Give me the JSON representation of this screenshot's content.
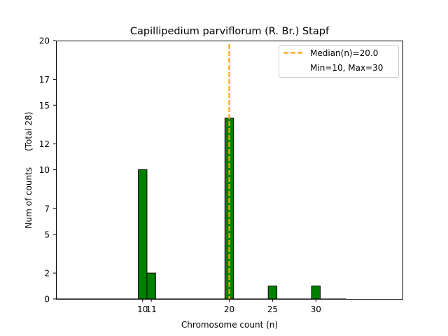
{
  "chart_data": {
    "type": "bar",
    "title": "Capillipedium parviflorum (R. Br.) Stapf",
    "xlabel": "Chromosome count (n)",
    "ylabel": "Num of counts      (Total 28)",
    "ylim": [
      0,
      20
    ],
    "xlim": [
      0,
      40
    ],
    "xticks": [
      10,
      11,
      20,
      25,
      30
    ],
    "yticks": [
      0,
      2,
      5,
      7,
      10,
      12,
      15,
      17,
      20
    ],
    "bars": [
      {
        "x": 10,
        "value": 10
      },
      {
        "x": 11,
        "value": 2
      },
      {
        "x": 20,
        "value": 14
      },
      {
        "x": 25,
        "value": 1
      },
      {
        "x": 30,
        "value": 1
      }
    ],
    "baseline_end_x": 33.5,
    "median": 20.0,
    "bar_color": "#008000",
    "bar_edge_color": "#000000",
    "median_color": "#ffa500",
    "legend": {
      "placement": "top-right",
      "entries": [
        "Median(n)=20.0",
        "Min=10, Max=30"
      ]
    },
    "grid": false
  }
}
